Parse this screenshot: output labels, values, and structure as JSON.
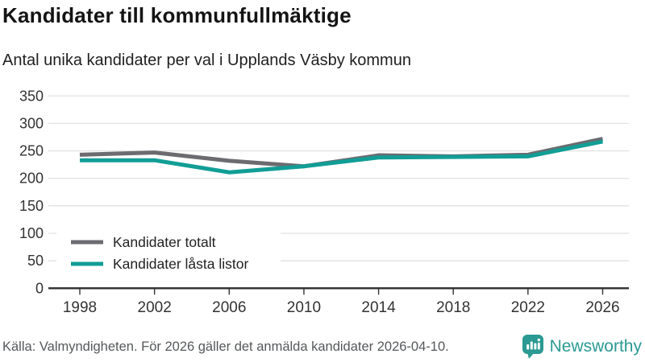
{
  "header": {
    "title": "Kandidater till kommunfullmäktige",
    "subtitle": "Antal unika kandidater per val i Upplands Väsby kommun"
  },
  "chart_data": {
    "type": "line",
    "title": "Kandidater till kommunfullmäktige",
    "subtitle": "Antal unika kandidater per val i Upplands Väsby kommun",
    "x": [
      1998,
      2002,
      2006,
      2010,
      2014,
      2018,
      2022,
      2026
    ],
    "series": [
      {
        "name": "Kandidater totalt",
        "color": "#6b6b70",
        "values": [
          243,
          247,
          232,
          222,
          242,
          240,
          243,
          272
        ]
      },
      {
        "name": "Kandidater låsta listor",
        "color": "#119e96",
        "values": [
          233,
          233,
          211,
          222,
          238,
          239,
          240,
          267
        ]
      }
    ],
    "ylim": [
      0,
      350
    ],
    "yticks": [
      0,
      50,
      100,
      150,
      200,
      250,
      300,
      350
    ],
    "grid": "horizontal",
    "legend_position": "inside-bottom-left",
    "colors": {
      "grid": "#e3e3e3",
      "axis": "#2d2d2d",
      "tick_label": "#333333",
      "legend_text": "#222222",
      "legend_bg": "#ffffff"
    }
  },
  "footer": {
    "source": "Källa: Valmyndigheten. För 2026 gäller det anmälda kandidater 2026-04-10.",
    "brand": "Newsworthy",
    "brand_color": "#2b9a93"
  }
}
